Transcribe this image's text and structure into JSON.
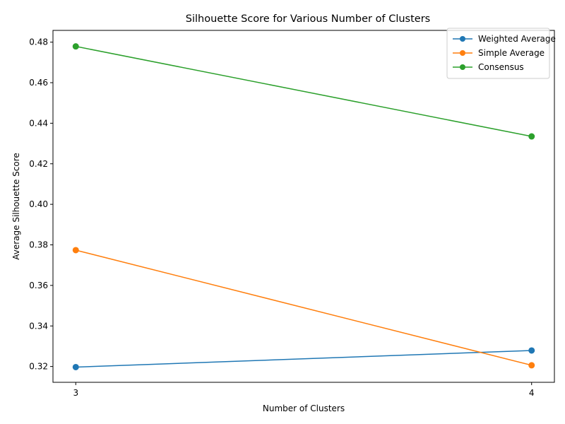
{
  "chart_data": {
    "type": "line",
    "title": "Silhouette Score for Various Number of Clusters",
    "xlabel": "Number of Clusters",
    "ylabel": "Average Silhouette Score",
    "x": [
      3,
      4
    ],
    "xticks": [
      "3",
      "4"
    ],
    "xlim": [
      2.95,
      4.05
    ],
    "ylim": [
      0.3122,
      0.4858
    ],
    "yticks": [
      0.32,
      0.34,
      0.36,
      0.38,
      0.4,
      0.42,
      0.44,
      0.46,
      0.48
    ],
    "ytick_labels": [
      "0.32",
      "0.34",
      "0.36",
      "0.38",
      "0.40",
      "0.42",
      "0.44",
      "0.46",
      "0.48"
    ],
    "grid": false,
    "legend_position": "top-right",
    "series": [
      {
        "name": "Weighted Average",
        "color": "#1f77b4",
        "values": [
          0.3197,
          0.3279
        ]
      },
      {
        "name": "Simple Average",
        "color": "#ff7f0e",
        "values": [
          0.3774,
          0.3206
        ]
      },
      {
        "name": "Consensus",
        "color": "#2ca02c",
        "values": [
          0.4779,
          0.4335
        ]
      }
    ]
  }
}
